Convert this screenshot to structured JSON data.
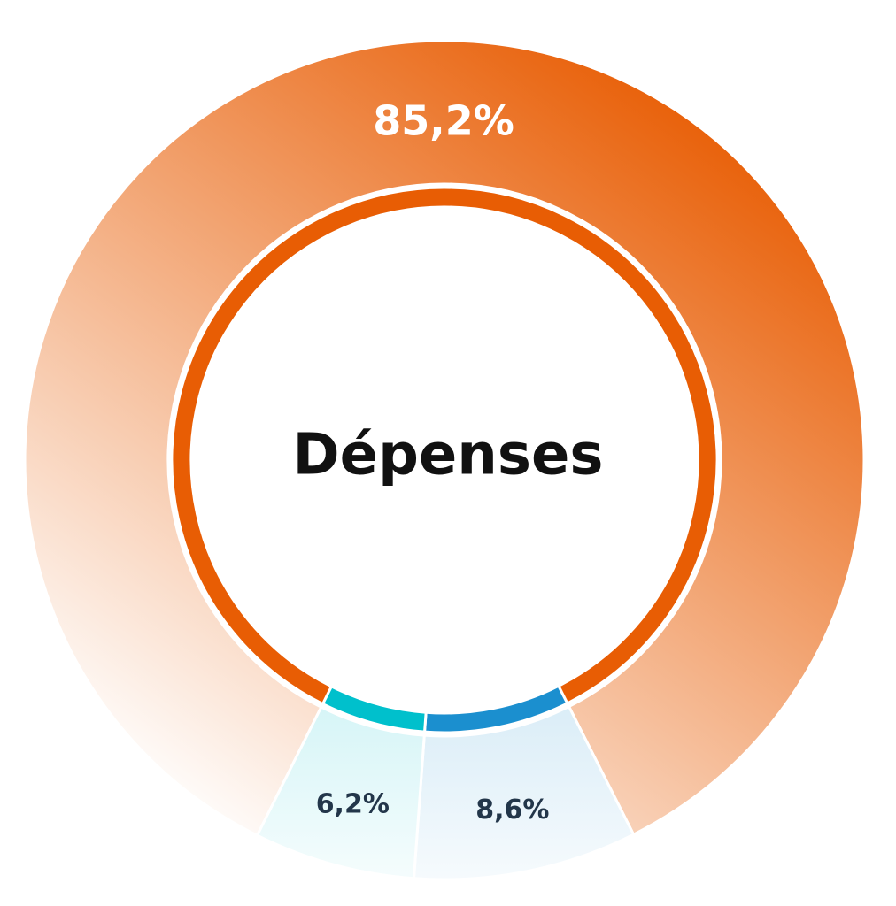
{
  "chart_data": {
    "type": "pie",
    "center_label": "Dépenses",
    "values": [
      85.2,
      8.6,
      6.2
    ],
    "value_labels": [
      "85,2%",
      "8,6%",
      "6,2%"
    ],
    "colors": [
      "#e85d04",
      "#1b8fcf",
      "#00c0cc"
    ]
  }
}
